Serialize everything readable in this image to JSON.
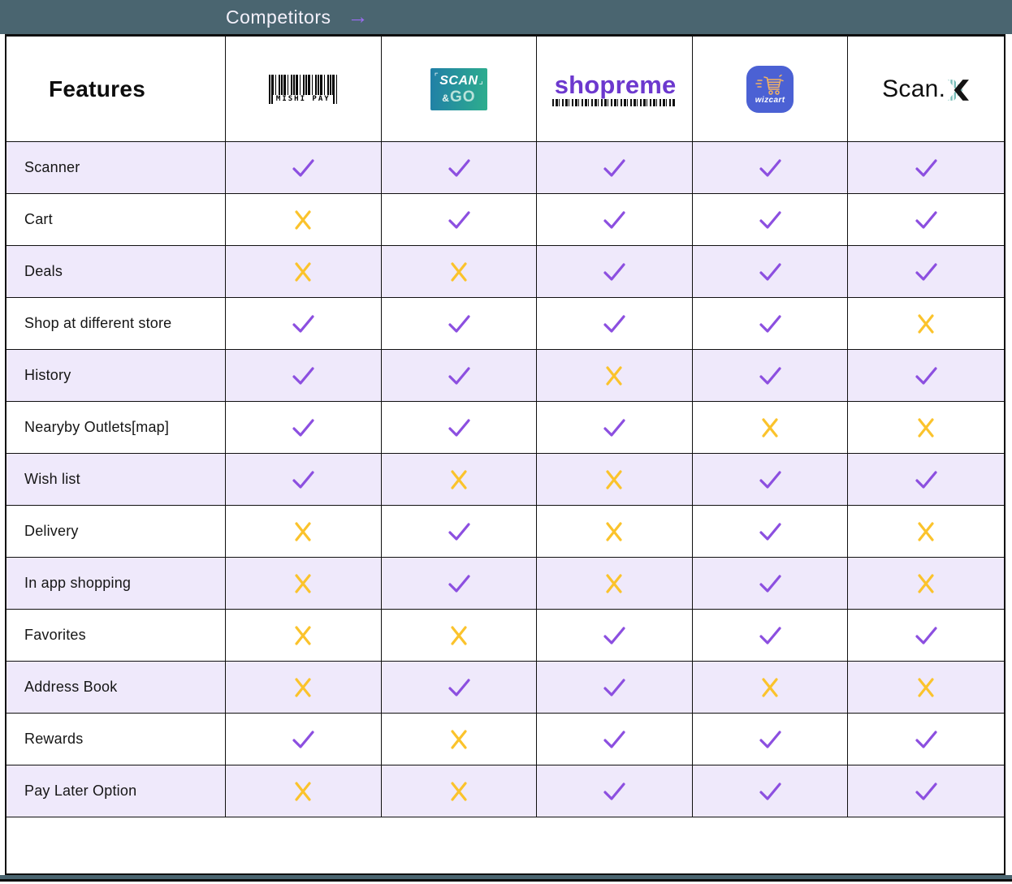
{
  "title_bar": {
    "title": "Competitors",
    "arrow_icon": "→"
  },
  "colors": {
    "title_bar_bg": "#4A6570",
    "arrow_purple": "#9C6CF4",
    "check": "#8C4FE0",
    "cross": "#FBC32C",
    "row_stripe": "#EFE9FB",
    "shopreme_purple": "#6C38CE",
    "wizcart_blue": "#4B61D4",
    "scango_gradient": [
      "#207FA7",
      "#2EAE8D"
    ]
  },
  "table": {
    "features_header": "Features",
    "competitors": [
      {
        "name": "MishiPay",
        "logo_text": "MISHI PAY"
      },
      {
        "name": "Scan & Go",
        "bracket_left": "⌜",
        "line1": "SCAN",
        "bracket_right": "⌟",
        "amp": "&",
        "line2": "GO"
      },
      {
        "name": "shopreme",
        "logo_text": "shopreme"
      },
      {
        "name": "wizcart",
        "logo_text": "wizcart"
      },
      {
        "name": "Scan.X",
        "logo_text": "Scan."
      }
    ],
    "rows": [
      {
        "feature": "Scanner",
        "values": [
          true,
          true,
          true,
          true,
          true
        ]
      },
      {
        "feature": "Cart",
        "values": [
          false,
          true,
          true,
          true,
          true
        ]
      },
      {
        "feature": "Deals",
        "values": [
          false,
          false,
          true,
          true,
          true
        ]
      },
      {
        "feature": "Shop at different store",
        "values": [
          true,
          true,
          true,
          true,
          false
        ]
      },
      {
        "feature": "History",
        "values": [
          true,
          true,
          false,
          true,
          true
        ]
      },
      {
        "feature": "Nearyby Outlets[map]",
        "values": [
          true,
          true,
          true,
          false,
          false
        ]
      },
      {
        "feature": "Wish list",
        "values": [
          true,
          false,
          false,
          true,
          true
        ]
      },
      {
        "feature": "Delivery",
        "values": [
          false,
          true,
          false,
          true,
          false
        ]
      },
      {
        "feature": "In app shopping",
        "values": [
          false,
          true,
          false,
          true,
          false
        ]
      },
      {
        "feature": "Favorites",
        "values": [
          false,
          false,
          true,
          true,
          true
        ]
      },
      {
        "feature": "Address Book",
        "values": [
          false,
          true,
          true,
          false,
          false
        ]
      },
      {
        "feature": "Rewards",
        "values": [
          true,
          false,
          true,
          true,
          true
        ]
      },
      {
        "feature": "Pay Later Option",
        "values": [
          false,
          false,
          true,
          true,
          true
        ]
      }
    ]
  }
}
